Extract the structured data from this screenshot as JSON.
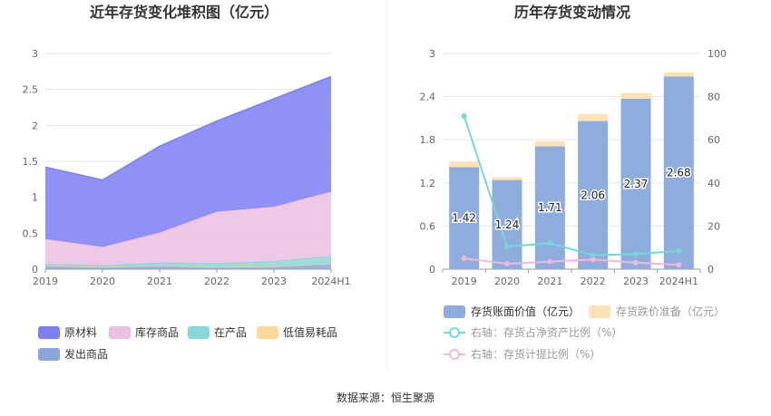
{
  "chart_data": [
    {
      "type": "area",
      "stacked": true,
      "title": "近年存货变化堆积图（亿元）",
      "categories": [
        "2019",
        "2020",
        "2021",
        "2022",
        "2023",
        "2024H1"
      ],
      "ylim": [
        0,
        3
      ],
      "yticks": [
        "0",
        "0.5",
        "1",
        "1.5",
        "2",
        "2.5",
        "3"
      ],
      "grid": true,
      "legend_position": "bottom-left",
      "series": [
        {
          "name": "原材料",
          "color": "#7b7ff2",
          "values": [
            1.0,
            0.93,
            1.2,
            1.26,
            1.5,
            1.6
          ]
        },
        {
          "name": "库存商品",
          "color": "#ebbfe0",
          "values": [
            0.35,
            0.26,
            0.42,
            0.72,
            0.76,
            0.9
          ]
        },
        {
          "name": "在产品",
          "color": "#88d7d8",
          "values": [
            0.02,
            0.02,
            0.04,
            0.05,
            0.07,
            0.1
          ]
        },
        {
          "name": "低值易耗品",
          "color": "#fdd89a",
          "values": [
            0.0,
            0.0,
            0.0,
            0.0,
            0.0,
            0.0
          ]
        },
        {
          "name": "发出商品",
          "color": "#8aa6dc",
          "values": [
            0.05,
            0.03,
            0.05,
            0.03,
            0.04,
            0.08
          ]
        }
      ]
    },
    {
      "type": "bar",
      "stacked": true,
      "title": "历年存货变动情况",
      "categories": [
        "2019",
        "2020",
        "2021",
        "2022",
        "2023",
        "2024H1"
      ],
      "ylim": [
        0,
        3
      ],
      "yticks": [
        "0",
        "0.6",
        "1.2",
        "1.8",
        "2.4",
        "3"
      ],
      "y2lim": [
        0,
        100
      ],
      "y2ticks": [
        "0",
        "20",
        "40",
        "60",
        "80",
        "100"
      ],
      "grid": true,
      "series": [
        {
          "name": "存货账面价值（亿元）",
          "color": "#8eaddc",
          "values": [
            1.42,
            1.24,
            1.71,
            2.06,
            2.37,
            2.68
          ],
          "labels": [
            "1.42",
            "1.24",
            "1.71",
            "2.06",
            "2.37",
            "2.68"
          ]
        },
        {
          "name": "存货跌价准备（亿元）",
          "color": "#fde2b8",
          "values": [
            0.08,
            0.04,
            0.07,
            0.1,
            0.08,
            0.06
          ]
        },
        {
          "name": "右轴：存货占净资产比例（%）",
          "type": "line",
          "axis": "right",
          "color": "#72d8d8",
          "values": [
            71,
            10.5,
            12,
            6.5,
            7,
            8.5
          ]
        },
        {
          "name": "右轴：存货计提比例（%）",
          "type": "line",
          "axis": "right",
          "color": "#f1b8dc",
          "values": [
            5,
            2.5,
            3.5,
            4.5,
            3,
            2
          ]
        }
      ]
    }
  ],
  "footer": {
    "source": "数据来源：恒生聚源"
  }
}
